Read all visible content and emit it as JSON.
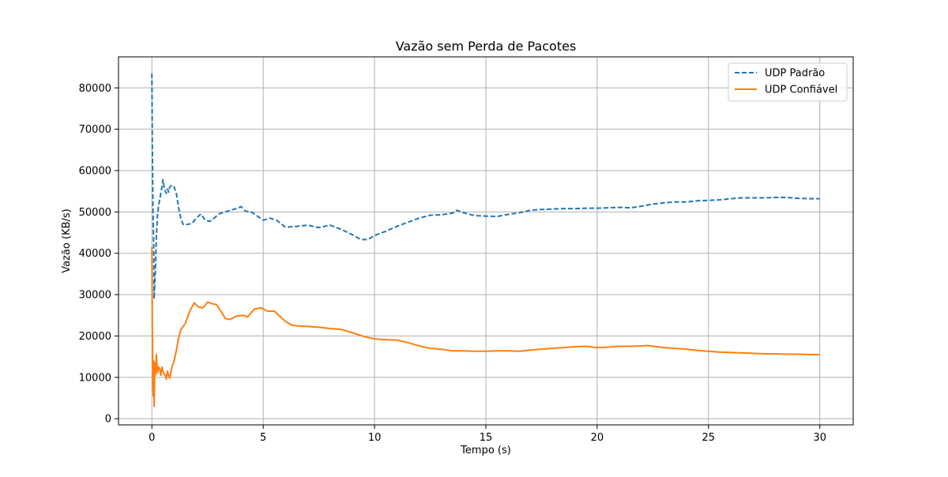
{
  "chart_data": {
    "type": "line",
    "title": "Vazão sem Perda de Pacotes",
    "xlabel": "Tempo (s)",
    "ylabel": "Vazão (KB/s)",
    "xlim": [
      -1.5,
      31.5
    ],
    "ylim": [
      -1500,
      87500
    ],
    "xticks": [
      0,
      5,
      10,
      15,
      20,
      25,
      30
    ],
    "yticks": [
      0,
      10000,
      20000,
      30000,
      40000,
      50000,
      60000,
      70000,
      80000
    ],
    "grid": true,
    "legend_position": "top-right",
    "series": [
      {
        "name": "UDP Padrão",
        "color": "#1f77b4",
        "linestyle": "dashed",
        "points": [
          [
            0.0,
            83500
          ],
          [
            0.02,
            66000
          ],
          [
            0.05,
            50000
          ],
          [
            0.08,
            42000
          ],
          [
            0.1,
            29000
          ],
          [
            0.13,
            33000
          ],
          [
            0.16,
            36000
          ],
          [
            0.2,
            44000
          ],
          [
            0.25,
            49000
          ],
          [
            0.3,
            51500
          ],
          [
            0.35,
            53000
          ],
          [
            0.4,
            54500
          ],
          [
            0.45,
            56000
          ],
          [
            0.5,
            57800
          ],
          [
            0.55,
            56000
          ],
          [
            0.6,
            55000
          ],
          [
            0.65,
            54500
          ],
          [
            0.7,
            55500
          ],
          [
            0.75,
            54800
          ],
          [
            0.8,
            56000
          ],
          [
            0.9,
            56500
          ],
          [
            1.0,
            56000
          ],
          [
            1.1,
            54500
          ],
          [
            1.2,
            51000
          ],
          [
            1.3,
            48500
          ],
          [
            1.4,
            47000
          ],
          [
            1.5,
            46800
          ],
          [
            1.6,
            47000
          ],
          [
            1.8,
            47200
          ],
          [
            2.0,
            48500
          ],
          [
            2.2,
            49500
          ],
          [
            2.4,
            48000
          ],
          [
            2.6,
            47700
          ],
          [
            2.8,
            48500
          ],
          [
            3.0,
            49500
          ],
          [
            3.3,
            50000
          ],
          [
            3.6,
            50500
          ],
          [
            3.9,
            51000
          ],
          [
            4.0,
            51300
          ],
          [
            4.2,
            50200
          ],
          [
            4.5,
            49900
          ],
          [
            5.0,
            48000
          ],
          [
            5.3,
            48500
          ],
          [
            5.6,
            48000
          ],
          [
            6.0,
            46300
          ],
          [
            6.5,
            46500
          ],
          [
            7.0,
            46800
          ],
          [
            7.5,
            46200
          ],
          [
            8.0,
            46800
          ],
          [
            8.5,
            45800
          ],
          [
            9.0,
            44500
          ],
          [
            9.4,
            43300
          ],
          [
            9.7,
            43300
          ],
          [
            10.0,
            44300
          ],
          [
            10.5,
            45300
          ],
          [
            11.0,
            46500
          ],
          [
            11.5,
            47500
          ],
          [
            12.0,
            48500
          ],
          [
            12.5,
            49200
          ],
          [
            13.0,
            49300
          ],
          [
            13.5,
            49700
          ],
          [
            13.7,
            50400
          ],
          [
            14.0,
            49800
          ],
          [
            14.5,
            49100
          ],
          [
            15.0,
            49000
          ],
          [
            15.5,
            48900
          ],
          [
            16.0,
            49400
          ],
          [
            16.5,
            49800
          ],
          [
            17.0,
            50400
          ],
          [
            17.5,
            50600
          ],
          [
            18.0,
            50700
          ],
          [
            18.5,
            50800
          ],
          [
            19.0,
            50800
          ],
          [
            19.5,
            50900
          ],
          [
            20.0,
            50900
          ],
          [
            20.5,
            51000
          ],
          [
            21.0,
            51100
          ],
          [
            21.5,
            51000
          ],
          [
            22.0,
            51400
          ],
          [
            22.5,
            51900
          ],
          [
            23.0,
            52200
          ],
          [
            23.5,
            52400
          ],
          [
            24.0,
            52400
          ],
          [
            24.5,
            52700
          ],
          [
            25.0,
            52800
          ],
          [
            25.5,
            52900
          ],
          [
            26.0,
            53200
          ],
          [
            26.5,
            53400
          ],
          [
            27.0,
            53400
          ],
          [
            27.5,
            53400
          ],
          [
            28.0,
            53500
          ],
          [
            28.5,
            53500
          ],
          [
            29.0,
            53300
          ],
          [
            29.5,
            53200
          ],
          [
            30.0,
            53200
          ]
        ]
      },
      {
        "name": "UDP Confiável",
        "color": "#ff7f0e",
        "linestyle": "solid",
        "points": [
          [
            0.0,
            41500
          ],
          [
            0.02,
            23000
          ],
          [
            0.04,
            9000
          ],
          [
            0.06,
            5500
          ],
          [
            0.08,
            14000
          ],
          [
            0.1,
            3000
          ],
          [
            0.13,
            13500
          ],
          [
            0.16,
            10500
          ],
          [
            0.2,
            15500
          ],
          [
            0.25,
            11000
          ],
          [
            0.3,
            12500
          ],
          [
            0.35,
            12000
          ],
          [
            0.4,
            10500
          ],
          [
            0.45,
            12500
          ],
          [
            0.5,
            11500
          ],
          [
            0.55,
            10800
          ],
          [
            0.6,
            10500
          ],
          [
            0.65,
            9500
          ],
          [
            0.7,
            11500
          ],
          [
            0.75,
            10500
          ],
          [
            0.8,
            9800
          ],
          [
            0.9,
            12500
          ],
          [
            1.0,
            14000
          ],
          [
            1.1,
            16500
          ],
          [
            1.2,
            19500
          ],
          [
            1.3,
            21500
          ],
          [
            1.5,
            23000
          ],
          [
            1.7,
            26000
          ],
          [
            1.9,
            28000
          ],
          [
            2.1,
            27000
          ],
          [
            2.3,
            26800
          ],
          [
            2.5,
            28200
          ],
          [
            2.7,
            27800
          ],
          [
            2.9,
            27600
          ],
          [
            3.1,
            26000
          ],
          [
            3.3,
            24200
          ],
          [
            3.5,
            24000
          ],
          [
            3.8,
            24800
          ],
          [
            4.1,
            25000
          ],
          [
            4.3,
            24600
          ],
          [
            4.6,
            26500
          ],
          [
            4.9,
            26800
          ],
          [
            5.2,
            26000
          ],
          [
            5.5,
            26000
          ],
          [
            5.8,
            24500
          ],
          [
            6.0,
            23500
          ],
          [
            6.3,
            22600
          ],
          [
            6.6,
            22400
          ],
          [
            7.0,
            22300
          ],
          [
            7.5,
            22100
          ],
          [
            8.0,
            21800
          ],
          [
            8.5,
            21600
          ],
          [
            9.0,
            20800
          ],
          [
            9.5,
            19900
          ],
          [
            10.0,
            19300
          ],
          [
            10.5,
            19100
          ],
          [
            11.0,
            19000
          ],
          [
            11.5,
            18400
          ],
          [
            12.0,
            17600
          ],
          [
            12.5,
            17000
          ],
          [
            13.0,
            16800
          ],
          [
            13.5,
            16400
          ],
          [
            14.0,
            16400
          ],
          [
            14.5,
            16300
          ],
          [
            15.0,
            16300
          ],
          [
            15.5,
            16400
          ],
          [
            16.0,
            16400
          ],
          [
            16.5,
            16300
          ],
          [
            17.0,
            16600
          ],
          [
            17.5,
            16800
          ],
          [
            18.0,
            17000
          ],
          [
            18.5,
            17200
          ],
          [
            19.0,
            17400
          ],
          [
            19.5,
            17500
          ],
          [
            20.0,
            17200
          ],
          [
            20.5,
            17300
          ],
          [
            21.0,
            17500
          ],
          [
            21.5,
            17500
          ],
          [
            22.0,
            17600
          ],
          [
            22.3,
            17700
          ],
          [
            22.5,
            17500
          ],
          [
            23.0,
            17200
          ],
          [
            23.5,
            17000
          ],
          [
            24.0,
            16800
          ],
          [
            24.5,
            16500
          ],
          [
            25.0,
            16300
          ],
          [
            25.5,
            16100
          ],
          [
            26.0,
            16000
          ],
          [
            26.5,
            15900
          ],
          [
            27.0,
            15800
          ],
          [
            27.5,
            15700
          ],
          [
            28.0,
            15700
          ],
          [
            28.5,
            15600
          ],
          [
            29.0,
            15600
          ],
          [
            29.5,
            15500
          ],
          [
            30.0,
            15500
          ]
        ]
      }
    ]
  }
}
